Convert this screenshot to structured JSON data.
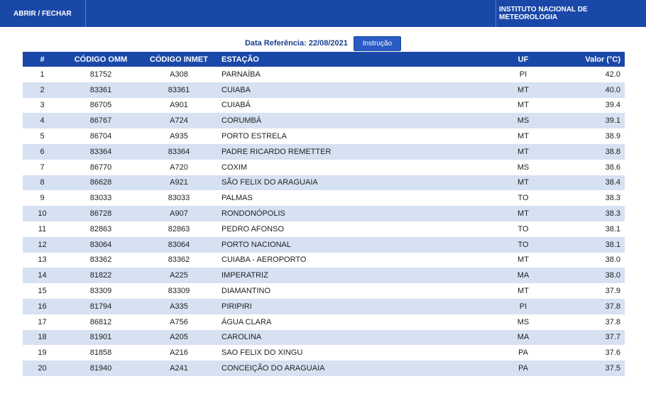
{
  "header": {
    "toggle_label": "ABRIR / FECHAR",
    "org_name": "INSTITUTO NACIONAL DE METEOROLOGIA"
  },
  "reference": {
    "label": "Data Referência: 22/08/2021",
    "button_label": "Instrução"
  },
  "table": {
    "columns": [
      "#",
      "CÓDIGO OMM",
      "CÓDIGO INMET",
      "ESTAÇÃO",
      "UF",
      "Valor (°C)"
    ],
    "rows": [
      [
        "1",
        "81752",
        "A308",
        "PARNAÍBA",
        "PI",
        "42.0"
      ],
      [
        "2",
        "83361",
        "83361",
        "CUIABA",
        "MT",
        "40.0"
      ],
      [
        "3",
        "86705",
        "A901",
        "CUIABÁ",
        "MT",
        "39.4"
      ],
      [
        "4",
        "86767",
        "A724",
        "CORUMBÁ",
        "MS",
        "39.1"
      ],
      [
        "5",
        "86704",
        "A935",
        "PORTO ESTRELA",
        "MT",
        "38.9"
      ],
      [
        "6",
        "83364",
        "83364",
        "PADRE RICARDO REMETTER",
        "MT",
        "38.8"
      ],
      [
        "7",
        "86770",
        "A720",
        "COXIM",
        "MS",
        "38.6"
      ],
      [
        "8",
        "86628",
        "A921",
        "SÃO FELIX DO ARAGUAIA",
        "MT",
        "38.4"
      ],
      [
        "9",
        "83033",
        "83033",
        "PALMAS",
        "TO",
        "38.3"
      ],
      [
        "10",
        "86728",
        "A907",
        "RONDONÓPOLIS",
        "MT",
        "38.3"
      ],
      [
        "11",
        "82863",
        "82863",
        "PEDRO AFONSO",
        "TO",
        "38.1"
      ],
      [
        "12",
        "83064",
        "83064",
        "PORTO NACIONAL",
        "TO",
        "38.1"
      ],
      [
        "13",
        "83362",
        "83362",
        "CUIABA - AEROPORTO",
        "MT",
        "38.0"
      ],
      [
        "14",
        "81822",
        "A225",
        "IMPERATRIZ",
        "MA",
        "38.0"
      ],
      [
        "15",
        "83309",
        "83309",
        "DIAMANTINO",
        "MT",
        "37.9"
      ],
      [
        "16",
        "81794",
        "A335",
        "PIRIPIRI",
        "PI",
        "37.8"
      ],
      [
        "17",
        "86812",
        "A756",
        "ÁGUA CLARA",
        "MS",
        "37.8"
      ],
      [
        "18",
        "81901",
        "A205",
        "CAROLINA",
        "MA",
        "37.7"
      ],
      [
        "19",
        "81858",
        "A216",
        "SAO FELIX DO XINGU",
        "PA",
        "37.6"
      ],
      [
        "20",
        "81940",
        "A241",
        "CONCEIÇÃO DO ARAGUAIA",
        "PA",
        "37.5"
      ]
    ]
  },
  "colors": {
    "primary": "#1a48a8",
    "stripe": "#d6e1f2"
  }
}
